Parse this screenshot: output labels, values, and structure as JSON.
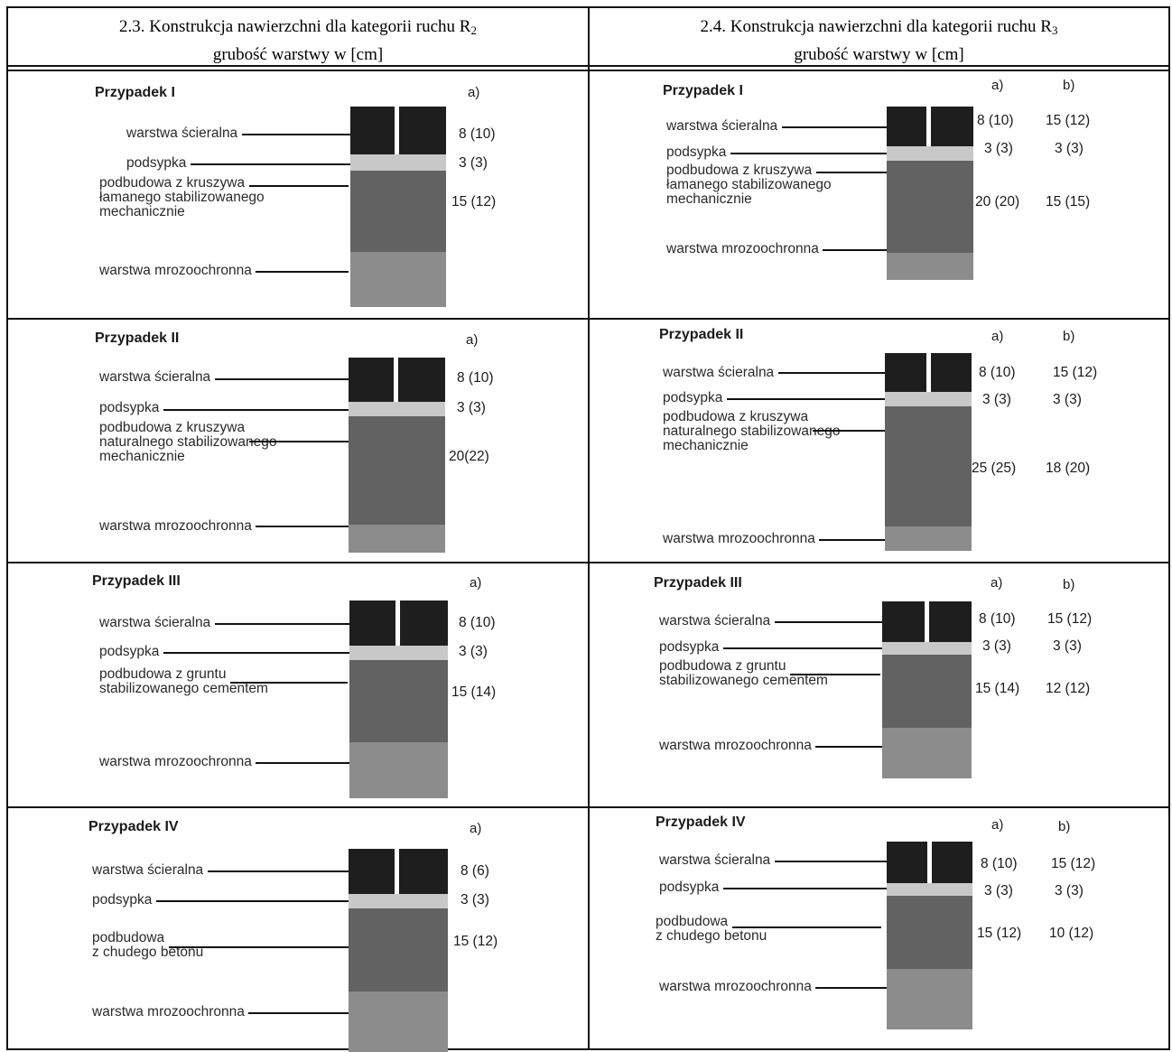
{
  "headers": [
    {
      "prefix": "2.3. Konstrukcja nawierzchni dla kategorii ruchu R",
      "sub": "2",
      "line2": "grubość warstwy w [cm]"
    },
    {
      "prefix": "2.4. Konstrukcja nawierzchni dla kategorii ruchu R",
      "sub": "3",
      "line2": "grubość warstwy w [cm]"
    }
  ],
  "cells": [
    {
      "title": "Przypadek I",
      "cols": [
        "a)"
      ],
      "layers": [
        {
          "label": [
            "warstwa ścieralna"
          ],
          "values": [
            "8 (10)"
          ]
        },
        {
          "label": [
            "podsypka"
          ],
          "values": [
            "3 (3)"
          ]
        },
        {
          "label": [
            "podbudowa z kruszywa",
            "łamanego stabilizowanego",
            "mechanicznie"
          ],
          "values": [
            "15 (12)"
          ]
        },
        {
          "label": [
            "warstwa mrozoochronna"
          ],
          "values": []
        }
      ]
    },
    {
      "title": "Przypadek I",
      "cols": [
        "a)",
        "b)"
      ],
      "layers": [
        {
          "label": [
            "warstwa ścieralna"
          ],
          "values": [
            "8 (10)",
            "15 (12)"
          ]
        },
        {
          "label": [
            "podsypka"
          ],
          "values": [
            "3 (3)",
            "3 (3)"
          ]
        },
        {
          "label": [
            "podbudowa z kruszywa",
            "łamanego stabilizowanego",
            "mechanicznie"
          ],
          "values": [
            "20 (20)",
            "15 (15)"
          ]
        },
        {
          "label": [
            "warstwa mrozoochronna"
          ],
          "values": []
        }
      ]
    },
    {
      "title": "Przypadek II",
      "cols": [
        "a)"
      ],
      "layers": [
        {
          "label": [
            "warstwa ścieralna"
          ],
          "values": [
            "8 (10)"
          ]
        },
        {
          "label": [
            "podsypka"
          ],
          "values": [
            "3 (3)"
          ]
        },
        {
          "label": [
            "podbudowa z kruszywa",
            "naturalnego stabilizowanego",
            "mechanicznie"
          ],
          "values": [
            "20(22)"
          ]
        },
        {
          "label": [
            "warstwa mrozoochronna"
          ],
          "values": []
        }
      ]
    },
    {
      "title": "Przypadek II",
      "cols": [
        "a)",
        "b)"
      ],
      "layers": [
        {
          "label": [
            "warstwa ścieralna"
          ],
          "values": [
            "8 (10)",
            "15 (12)"
          ]
        },
        {
          "label": [
            "podsypka"
          ],
          "values": [
            "3 (3)",
            "3 (3)"
          ]
        },
        {
          "label": [
            "podbudowa z kruszywa",
            "naturalnego stabilizowanego",
            "mechanicznie"
          ],
          "values": [
            "25 (25)",
            "18 (20)"
          ]
        },
        {
          "label": [
            "warstwa mrozoochronna"
          ],
          "values": []
        }
      ]
    },
    {
      "title": "Przypadek III",
      "cols": [
        "a)"
      ],
      "layers": [
        {
          "label": [
            "warstwa ścieralna"
          ],
          "values": [
            "8 (10)"
          ]
        },
        {
          "label": [
            "podsypka"
          ],
          "values": [
            "3 (3)"
          ]
        },
        {
          "label": [
            "podbudowa z gruntu",
            "stabilizowanego cementem"
          ],
          "values": [
            "15 (14)"
          ]
        },
        {
          "label": [
            "warstwa mrozoochronna"
          ],
          "values": []
        }
      ]
    },
    {
      "title": "Przypadek III",
      "cols": [
        "a)",
        "b)"
      ],
      "layers": [
        {
          "label": [
            "warstwa ścieralna"
          ],
          "values": [
            "8 (10)",
            "15 (12)"
          ]
        },
        {
          "label": [
            "podsypka"
          ],
          "values": [
            "3 (3)",
            "3 (3)"
          ]
        },
        {
          "label": [
            "podbudowa z gruntu",
            "stabilizowanego cementem"
          ],
          "values": [
            "15 (14)",
            "12 (12)"
          ]
        },
        {
          "label": [
            "warstwa mrozoochronna"
          ],
          "values": []
        }
      ]
    },
    {
      "title": "Przypadek IV",
      "cols": [
        "a)"
      ],
      "layers": [
        {
          "label": [
            "warstwa ścieralna"
          ],
          "values": [
            "8 (6)"
          ]
        },
        {
          "label": [
            "podsypka"
          ],
          "values": [
            "3 (3)"
          ]
        },
        {
          "label": [
            "podbudowa",
            "z chudego betonu"
          ],
          "values": [
            "15 (12)"
          ]
        },
        {
          "label": [
            "warstwa mrozoochronna"
          ],
          "values": []
        }
      ]
    },
    {
      "title": "Przypadek IV",
      "cols": [
        "a)",
        "b)"
      ],
      "layers": [
        {
          "label": [
            "warstwa ścieralna"
          ],
          "values": [
            "8 (10)",
            "15 (12)"
          ]
        },
        {
          "label": [
            "podsypka"
          ],
          "values": [
            "3 (3)",
            "3 (3)"
          ]
        },
        {
          "label": [
            "podbudowa",
            "z chudego betonu"
          ],
          "values": [
            "15 (12)",
            "10 (12)"
          ]
        },
        {
          "label": [
            "warstwa mrozoochronna"
          ],
          "values": []
        }
      ]
    }
  ]
}
